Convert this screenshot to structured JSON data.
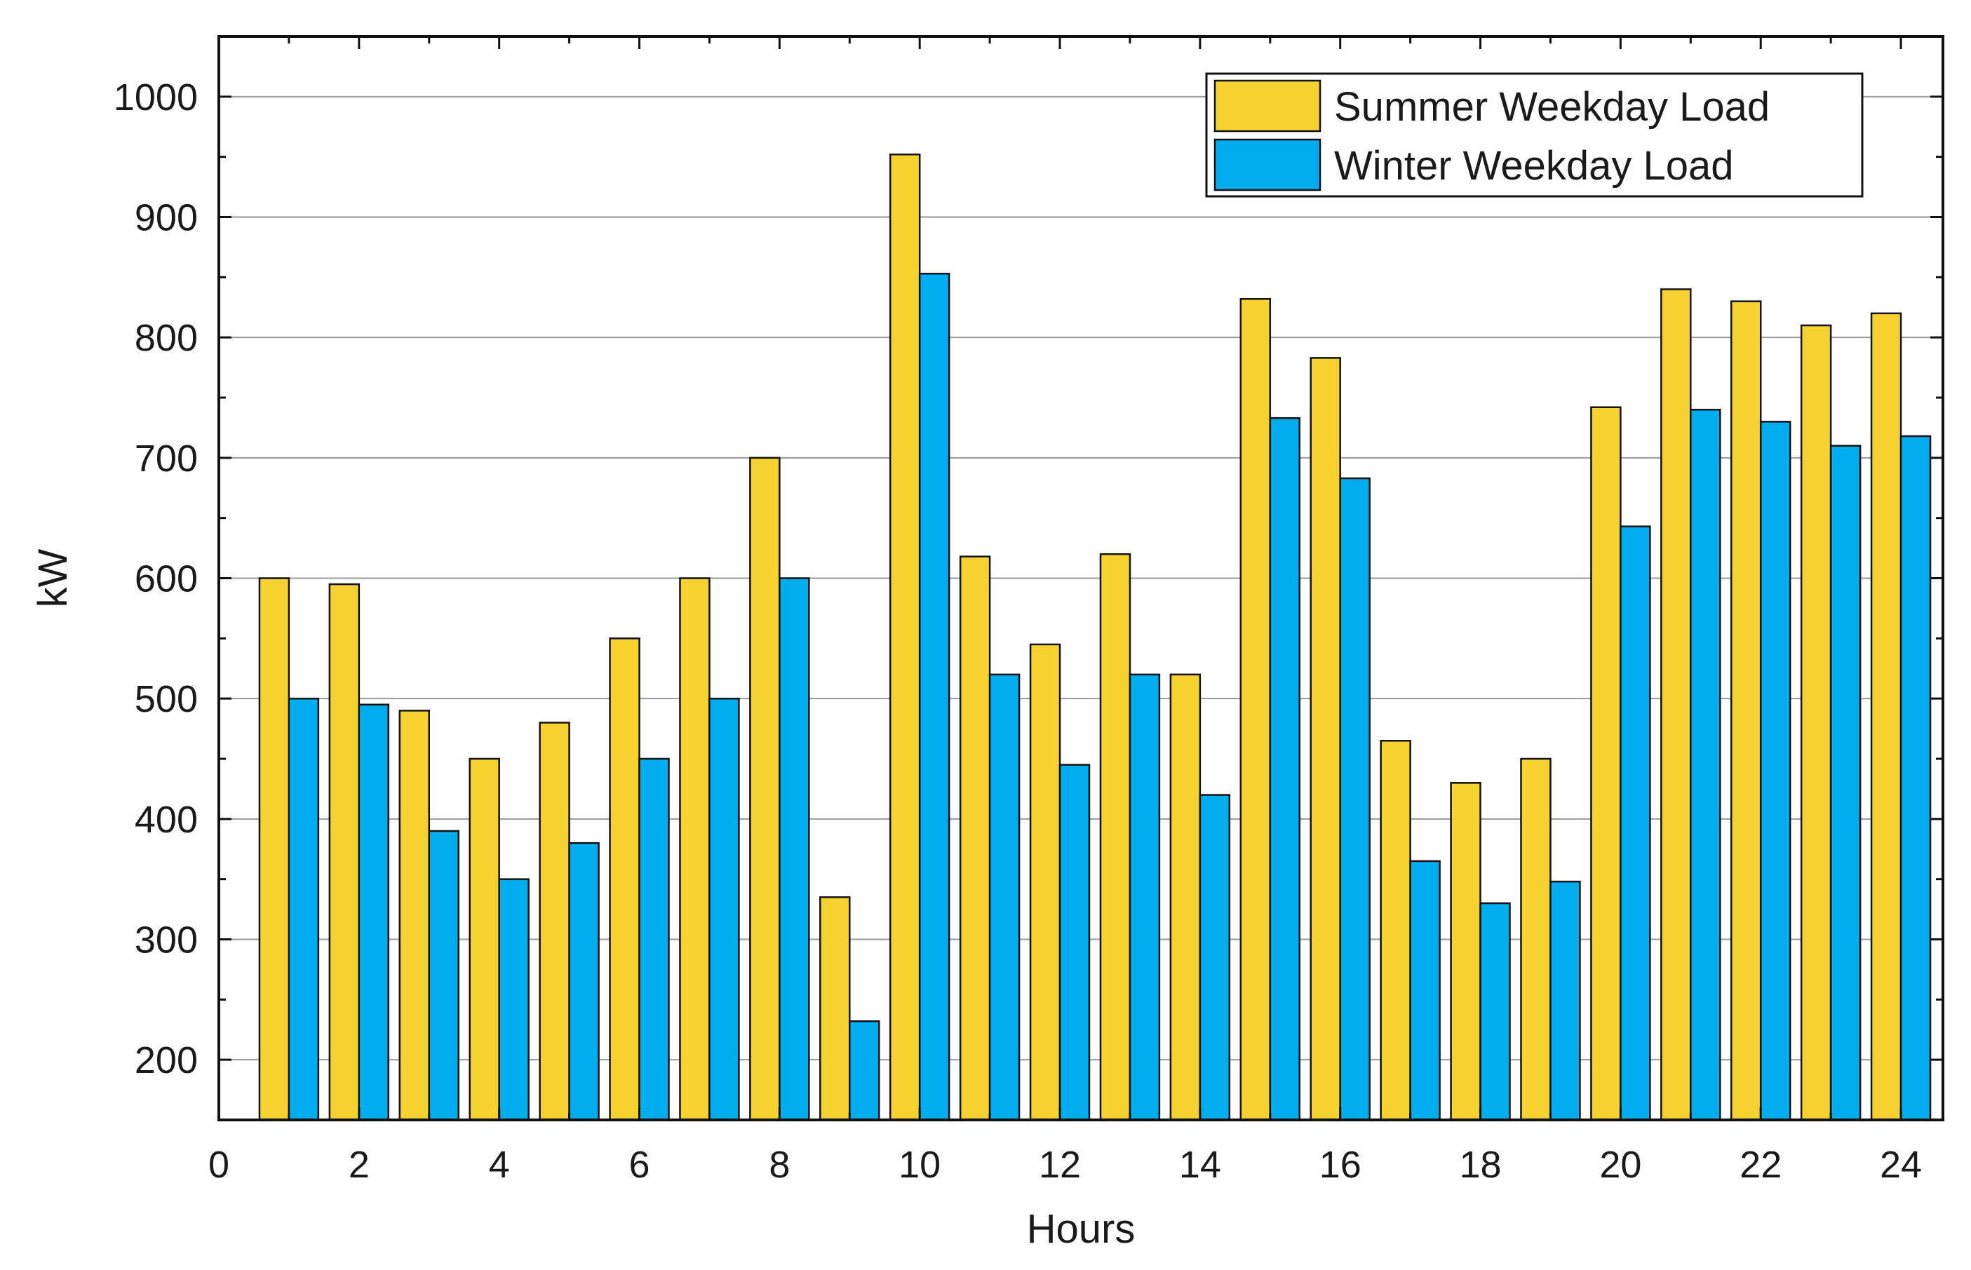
{
  "chart_data": {
    "type": "bar",
    "title": "",
    "xlabel": "Hours",
    "ylabel": "kW",
    "xlim": [
      0,
      24.6
    ],
    "ylim": [
      150,
      1050
    ],
    "x_ticks": [
      0,
      2,
      4,
      6,
      8,
      10,
      12,
      14,
      16,
      18,
      20,
      22,
      24
    ],
    "y_ticks": [
      200,
      300,
      400,
      500,
      600,
      700,
      800,
      900,
      1000
    ],
    "grid": true,
    "legend_position": "top-right",
    "x": [
      1,
      2,
      3,
      4,
      5,
      6,
      7,
      8,
      9,
      10,
      11,
      12,
      13,
      14,
      15,
      16,
      17,
      18,
      19,
      20,
      21,
      22,
      23,
      24
    ],
    "series": [
      {
        "name": "Summer Weekday Load",
        "color": "#f5d22f",
        "values": [
          600,
          595,
          490,
          450,
          480,
          550,
          600,
          700,
          335,
          952,
          618,
          545,
          620,
          520,
          832,
          783,
          465,
          430,
          450,
          742,
          840,
          830,
          810,
          820
        ]
      },
      {
        "name": "Winter Weekday Load",
        "color": "#00adef",
        "values": [
          500,
          495,
          390,
          350,
          380,
          450,
          500,
          600,
          232,
          853,
          520,
          445,
          520,
          420,
          733,
          683,
          365,
          330,
          348,
          643,
          740,
          730,
          710,
          718
        ]
      }
    ]
  }
}
